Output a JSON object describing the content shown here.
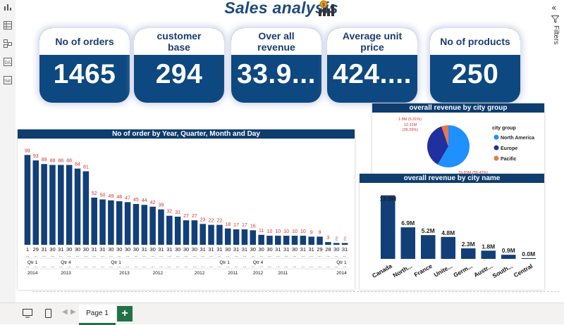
{
  "title": "Sales analysis",
  "kpis": [
    {
      "label": "No of orders",
      "value": "1465"
    },
    {
      "label": "customer base",
      "value": "294"
    },
    {
      "label": "Over all revenue",
      "value": "33.9..."
    },
    {
      "label": "Average unit price",
      "value": "424...."
    },
    {
      "label": "No of products",
      "value": "250"
    }
  ],
  "side_panel": {
    "filters_label": "Filters",
    "collapse_icon": "double-chevron-left-icon",
    "filter_icon": "funnel-icon"
  },
  "left_rail_icons": [
    "report-view-icon",
    "table-view-icon",
    "model-view-icon",
    "dax-query-icon",
    "tmdl-view-icon"
  ],
  "pages": {
    "tab": "Page 1",
    "add": "+"
  },
  "colors": {
    "navy": "#0d4880",
    "bar": "#123f78",
    "label_red": "#d23030",
    "na": "#1e90ff",
    "eu": "#2130a0",
    "pac": "#e8774a",
    "accent_green": "#217346"
  },
  "chart_data": [
    {
      "type": "bar",
      "title": "No of order by Year, Quarter, Month and Day",
      "values": [
        99,
        93,
        89,
        88,
        88,
        88,
        84,
        81,
        52,
        50,
        49,
        48,
        47,
        45,
        44,
        42,
        39,
        32,
        31,
        27,
        27,
        23,
        22,
        22,
        18,
        17,
        17,
        16,
        11,
        10,
        10,
        10,
        10,
        10,
        9,
        9,
        3,
        2,
        2
      ],
      "day_labels": [
        "1",
        "29",
        "31",
        "30",
        "31",
        "30",
        "30",
        "30",
        "31",
        "31",
        "30",
        "30",
        "30",
        "30",
        "31",
        "30",
        "31",
        "31",
        "30",
        "30",
        "30",
        "31",
        "31",
        "31",
        "30",
        "31",
        "31",
        "30",
        "30",
        "30",
        "31",
        "31",
        "30",
        "31",
        "31",
        "29",
        "28",
        "30",
        "31"
      ],
      "quarter_labels": [
        {
          "at": 0,
          "label": "Qtr 1"
        },
        {
          "at": 4,
          "label": "Qtr 4"
        },
        {
          "at": 10,
          "label": "Qtr 1"
        },
        {
          "at": 23,
          "label": "Qtr 1"
        },
        {
          "at": 27,
          "label": "Qtr 4"
        },
        {
          "at": 37,
          "label": "Qtr 1"
        }
      ],
      "year_labels": [
        {
          "at": 0,
          "label": "2014"
        },
        {
          "at": 4,
          "label": "2013"
        },
        {
          "at": 11,
          "label": "2013"
        },
        {
          "at": 15,
          "label": "2012"
        },
        {
          "at": 20,
          "label": "2012"
        },
        {
          "at": 24,
          "label": "2011"
        },
        {
          "at": 27,
          "label": "2012"
        },
        {
          "at": 30,
          "label": "2011"
        },
        {
          "at": 37,
          "label": "2014"
        }
      ],
      "month_placeholder": "...",
      "ylim": [
        0,
        100
      ]
    },
    {
      "type": "pie",
      "title": "overall revenue by city group",
      "legend_title": "city group",
      "slices": [
        {
          "name": "North America",
          "value": 19.83,
          "label": "19.83M (58.42%)",
          "color": "#1e90ff"
        },
        {
          "name": "Europe",
          "value": 12.31,
          "label": "12.31M (36.26%)",
          "color": "#2130a0"
        },
        {
          "name": "Pacific",
          "value": 1.8,
          "label": "1.8M (5.31%)",
          "color": "#e8774a"
        }
      ]
    },
    {
      "type": "bar",
      "title": "overall revenue by city name",
      "categories": [
        "Canada",
        "North...",
        "France",
        "Unite...",
        "Germ...",
        "Austr...",
        "South...",
        "Central"
      ],
      "values": [
        13.9,
        6.9,
        5.2,
        4.8,
        2.3,
        1.8,
        0.9,
        0.0
      ],
      "value_labels": [
        "13.9M",
        "6.9M",
        "5.2M",
        "4.8M",
        "2.3M",
        "1.8M",
        "0.9M",
        "0.0M"
      ],
      "ylim": [
        0,
        14
      ]
    }
  ]
}
